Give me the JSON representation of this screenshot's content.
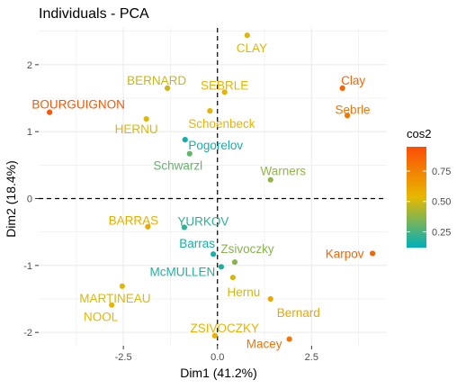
{
  "chart_data": {
    "type": "scatter",
    "title": "Individuals - PCA",
    "xlabel": "Dim1 (41.2%)",
    "ylabel": "Dim2 (18.4%)",
    "xlim": [
      -4.75,
      4.5
    ],
    "ylim": [
      -2.2,
      2.55
    ],
    "xticks": [
      -2.5,
      0.0,
      2.5
    ],
    "xtick_labels": [
      "-2.5",
      "0.0",
      "2.5"
    ],
    "yticks": [
      -2,
      -1,
      0,
      1,
      2
    ],
    "ytick_labels": [
      "-2",
      "-1",
      "0",
      "1",
      "2"
    ],
    "grid": true,
    "reference_lines": {
      "x": 0,
      "y": 0,
      "style": "dashed"
    },
    "color_scale": {
      "variable": "cos2",
      "low_color": "#00AFBB",
      "mid_color": "#E7B800",
      "high_color": "#FC4E07",
      "range": [
        0.12,
        0.95
      ],
      "ticks": [
        0.25,
        0.5,
        0.75
      ],
      "tick_labels": [
        "0.25",
        "0.50",
        "0.75"
      ]
    },
    "legend": {
      "title": "cos2",
      "placement": "right"
    },
    "points": [
      {
        "label": "SEBRLE",
        "x": 0.19,
        "y": 1.59,
        "cos2": 0.55
      },
      {
        "label": "CLAY",
        "x": 0.79,
        "y": 2.44,
        "cos2": 0.52
      },
      {
        "label": "BERNARD",
        "x": -1.33,
        "y": 1.65,
        "cos2": 0.48
      },
      {
        "label": "YURKOV",
        "x": -0.88,
        "y": -0.43,
        "cos2": 0.2
      },
      {
        "label": "ZSIVOCZKY",
        "x": -0.07,
        "y": -2.05,
        "cos2": 0.55
      },
      {
        "label": "McMULLEN",
        "x": 0.1,
        "y": -1.02,
        "cos2": 0.18
      },
      {
        "label": "MARTINEAU",
        "x": -2.53,
        "y": -1.31,
        "cos2": 0.52
      },
      {
        "label": "HERNU",
        "x": -1.89,
        "y": 1.19,
        "cos2": 0.52
      },
      {
        "label": "BARRAS",
        "x": -1.85,
        "y": -0.42,
        "cos2": 0.58
      },
      {
        "label": "NOOL",
        "x": -2.81,
        "y": -1.59,
        "cos2": 0.53
      },
      {
        "label": "BOURGUIGNON",
        "x": -4.46,
        "y": 1.29,
        "cos2": 0.92
      },
      {
        "label": "Sebrle",
        "x": 3.45,
        "y": 1.24,
        "cos2": 0.8
      },
      {
        "label": "Clay",
        "x": 3.32,
        "y": 1.65,
        "cos2": 0.86
      },
      {
        "label": "Karpov",
        "x": 4.12,
        "y": -0.82,
        "cos2": 0.86
      },
      {
        "label": "Macey",
        "x": 1.91,
        "y": -2.1,
        "cos2": 0.8
      },
      {
        "label": "Warners",
        "x": 1.41,
        "y": 0.28,
        "cos2": 0.38
      },
      {
        "label": "Zsivoczky",
        "x": 0.46,
        "y": -0.95,
        "cos2": 0.36
      },
      {
        "label": "Hernu",
        "x": 0.41,
        "y": -1.18,
        "cos2": 0.5
      },
      {
        "label": "Bernard",
        "x": 1.41,
        "y": -1.5,
        "cos2": 0.6
      },
      {
        "label": "Schwarzl",
        "x": -0.74,
        "y": 0.67,
        "cos2": 0.3
      },
      {
        "label": "Pogorelov",
        "x": -0.86,
        "y": 0.88,
        "cos2": 0.15
      },
      {
        "label": "Schoenbeck",
        "x": -0.2,
        "y": 1.31,
        "cos2": 0.55
      },
      {
        "label": "Barras",
        "x": -0.11,
        "y": -0.83,
        "cos2": 0.16
      }
    ]
  }
}
